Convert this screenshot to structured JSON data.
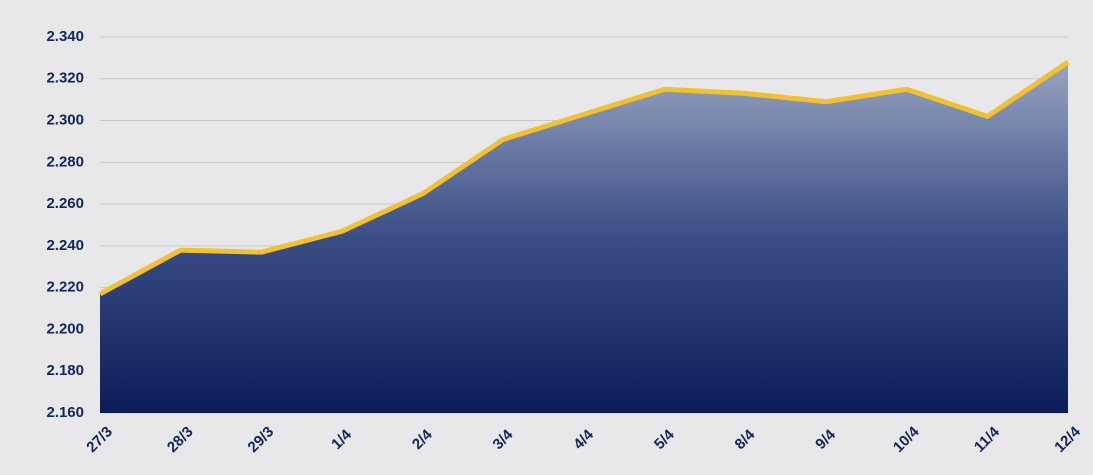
{
  "chart_data": {
    "type": "area",
    "categories": [
      "27/3",
      "28/3",
      "29/3",
      "1/4",
      "2/4",
      "3/4",
      "4/4",
      "5/4",
      "8/4",
      "9/4",
      "10/4",
      "11/4",
      "12/4"
    ],
    "values": [
      2217,
      2238,
      2237,
      2247,
      2265,
      2291,
      2303,
      2315,
      2313,
      2309,
      2315,
      2302,
      2328
    ],
    "color": "#f2c131",
    "ylim": [
      2160,
      2340
    ],
    "yticks": [
      {
        "value": 2160,
        "label": "2.160"
      },
      {
        "value": 2180,
        "label": "2.180"
      },
      {
        "value": 2200,
        "label": "2.200"
      },
      {
        "value": 2220,
        "label": "2.220"
      },
      {
        "value": 2240,
        "label": "2.240"
      },
      {
        "value": 2260,
        "label": "2.260"
      },
      {
        "value": 2280,
        "label": "2.280"
      },
      {
        "value": 2300,
        "label": "2.300"
      },
      {
        "value": 2320,
        "label": "2.320"
      },
      {
        "value": 2340,
        "label": "2.340"
      }
    ],
    "grid": true
  }
}
